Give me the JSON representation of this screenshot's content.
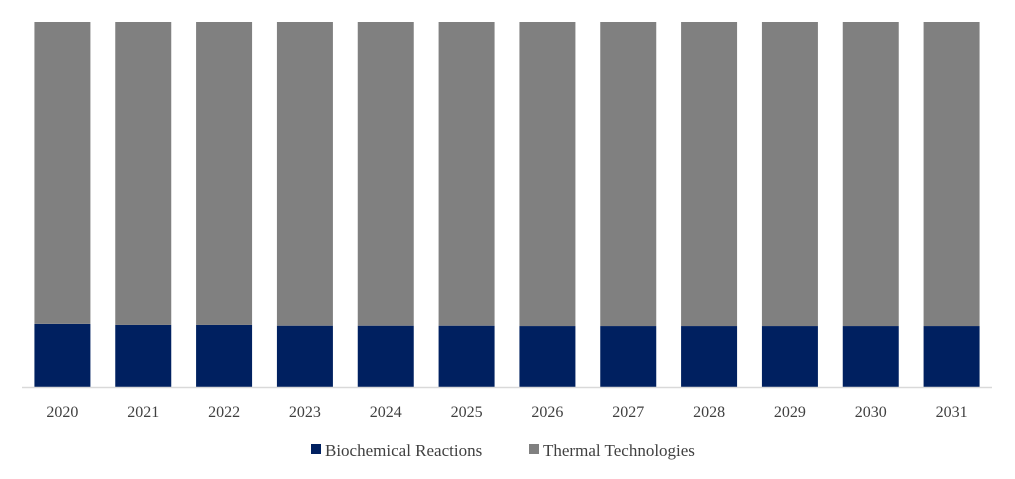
{
  "chart_data": {
    "type": "bar",
    "stacked": true,
    "percent_stacked": true,
    "title": "",
    "xlabel": "",
    "ylabel": "",
    "ylim": [
      0,
      100
    ],
    "grid": false,
    "legend_position": "bottom",
    "categories": [
      "2020",
      "2021",
      "2022",
      "2023",
      "2024",
      "2025",
      "2026",
      "2027",
      "2028",
      "2029",
      "2030",
      "2031"
    ],
    "series": [
      {
        "name": "Biochemical Reactions",
        "color": "#002060",
        "values": [
          17.3,
          17.0,
          17.0,
          16.8,
          16.8,
          16.8,
          16.7,
          16.7,
          16.7,
          16.7,
          16.7,
          16.7
        ]
      },
      {
        "name": "Thermal Technologies",
        "color": "#808080",
        "values": [
          82.7,
          83.0,
          83.0,
          83.2,
          83.2,
          83.2,
          83.3,
          83.3,
          83.3,
          83.3,
          83.3,
          83.3
        ]
      }
    ],
    "axis_color": "#d9d9d9"
  }
}
